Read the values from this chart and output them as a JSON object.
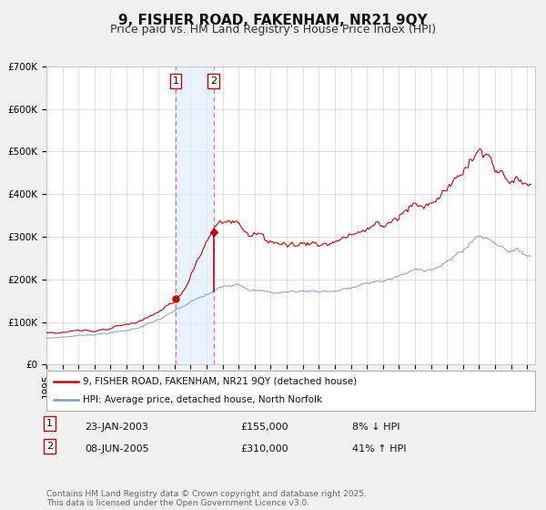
{
  "title": "9, FISHER ROAD, FAKENHAM, NR21 9QY",
  "subtitle": "Price paid vs. HM Land Registry's House Price Index (HPI)",
  "ylim": [
    0,
    700000
  ],
  "xlim_start": 1995.0,
  "xlim_end": 2025.5,
  "ytick_labels": [
    "£0",
    "£100K",
    "£200K",
    "£300K",
    "£400K",
    "£500K",
    "£600K",
    "£700K"
  ],
  "ytick_values": [
    0,
    100000,
    200000,
    300000,
    400000,
    500000,
    600000,
    700000
  ],
  "sale1_date": 2003.06,
  "sale1_price": 155000,
  "sale1_label": "23-JAN-2003",
  "sale1_hpi_pct": "8% ↓ HPI",
  "sale2_date": 2005.44,
  "sale2_price": 310000,
  "sale2_label": "08-JUN-2005",
  "sale2_hpi_pct": "41% ↑ HPI",
  "red_line_color": "#cc0000",
  "blue_line_color": "#7799cc",
  "shade_color": "#ddeeff",
  "legend1_label": "9, FISHER ROAD, FAKENHAM, NR21 9QY (detached house)",
  "legend2_label": "HPI: Average price, detached house, North Norfolk",
  "footer": "Contains HM Land Registry data © Crown copyright and database right 2025.\nThis data is licensed under the Open Government Licence v3.0.",
  "background_color": "#f0f0f0",
  "plot_bg_color": "#ffffff",
  "grid_color": "#cccccc",
  "title_fontsize": 11,
  "subtitle_fontsize": 9,
  "tick_fontsize": 7.5
}
